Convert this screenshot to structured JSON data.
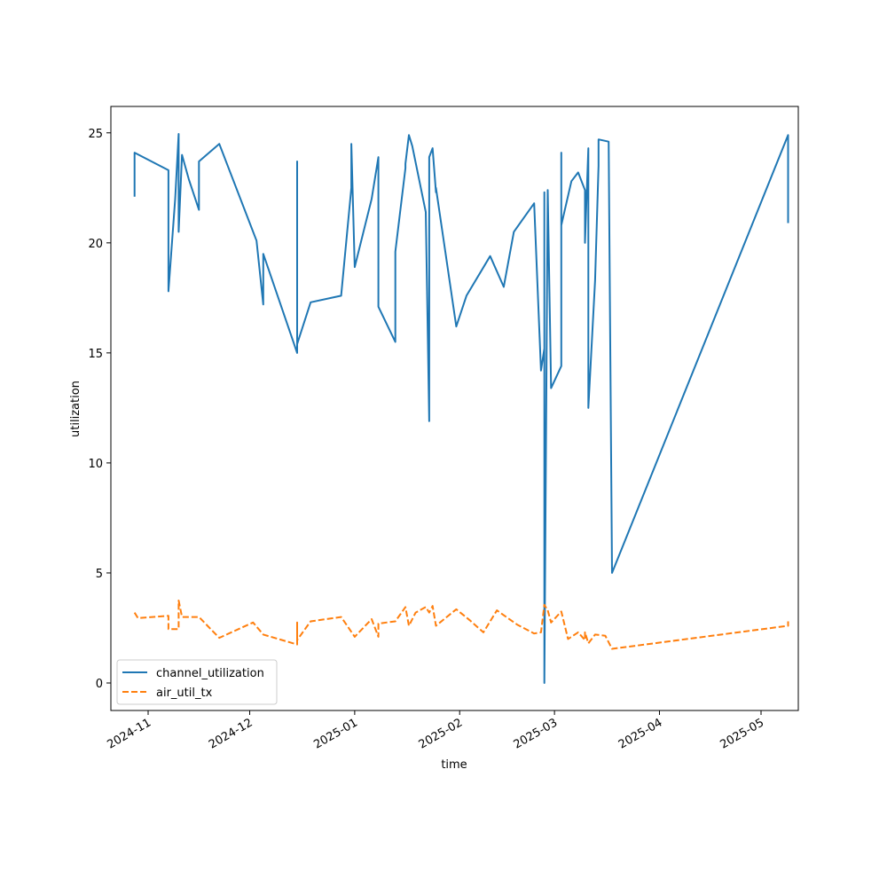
{
  "chart_data": {
    "type": "line",
    "title": "",
    "xlabel": "time",
    "ylabel": "utilization",
    "xlim": [
      "2024-10-21",
      "2025-05-12"
    ],
    "ylim": [
      -1.25,
      26.2
    ],
    "grid": false,
    "legend_position": "lower-left",
    "x_ticks": [
      {
        "date": "2024-11-01",
        "label": "2024-11"
      },
      {
        "date": "2024-12-01",
        "label": "2024-12"
      },
      {
        "date": "2025-01-01",
        "label": "2025-01"
      },
      {
        "date": "2025-02-01",
        "label": "2025-02"
      },
      {
        "date": "2025-03-01",
        "label": "2025-03"
      },
      {
        "date": "2025-04-01",
        "label": "2025-04"
      },
      {
        "date": "2025-05-01",
        "label": "2025-05"
      }
    ],
    "y_ticks": [
      0,
      5,
      10,
      15,
      20,
      25
    ],
    "series": [
      {
        "name": "channel_utilization",
        "color": "#1f77b4",
        "style": "solid",
        "points": [
          [
            "2024-10-28",
            22.1
          ],
          [
            "2024-10-28",
            24.1
          ],
          [
            "2024-11-07",
            23.3
          ],
          [
            "2024-11-07",
            17.8
          ],
          [
            "2024-11-09",
            22.0
          ],
          [
            "2024-11-10",
            24.95
          ],
          [
            "2024-11-10",
            20.5
          ],
          [
            "2024-11-11",
            24.0
          ],
          [
            "2024-11-13",
            22.9
          ],
          [
            "2024-11-16",
            21.5
          ],
          [
            "2024-11-16",
            23.7
          ],
          [
            "2024-11-22",
            24.5
          ],
          [
            "2024-12-03",
            20.1
          ],
          [
            "2024-12-05",
            17.2
          ],
          [
            "2024-12-05",
            19.5
          ],
          [
            "2024-12-15",
            15.0
          ],
          [
            "2024-12-15",
            23.7
          ],
          [
            "2024-12-15",
            15.4
          ],
          [
            "2024-12-19",
            17.3
          ],
          [
            "2024-12-28",
            17.6
          ],
          [
            "2024-12-31",
            22.5
          ],
          [
            "2024-12-31",
            24.5
          ],
          [
            "2025-01-01",
            18.9
          ],
          [
            "2025-01-06",
            22.0
          ],
          [
            "2025-01-08",
            23.9
          ],
          [
            "2025-01-08",
            17.1
          ],
          [
            "2025-01-13",
            15.5
          ],
          [
            "2025-01-13",
            19.6
          ],
          [
            "2025-01-16",
            23.4
          ],
          [
            "2025-01-16",
            23.6
          ],
          [
            "2025-01-17",
            24.9
          ],
          [
            "2025-01-18",
            24.4
          ],
          [
            "2025-01-22",
            21.4
          ],
          [
            "2025-01-23",
            11.9
          ],
          [
            "2025-01-23",
            23.9
          ],
          [
            "2025-01-24",
            24.3
          ],
          [
            "2025-01-25",
            22.3
          ],
          [
            "2025-01-25",
            22.5
          ],
          [
            "2025-01-31",
            16.2
          ],
          [
            "2025-02-03",
            17.6
          ],
          [
            "2025-02-10",
            19.4
          ],
          [
            "2025-02-14",
            18.0
          ],
          [
            "2025-02-17",
            20.5
          ],
          [
            "2025-02-23",
            21.8
          ],
          [
            "2025-02-25",
            14.2
          ],
          [
            "2025-02-26",
            15.2
          ],
          [
            "2025-02-26",
            22.3
          ],
          [
            "2025-02-26",
            0.0
          ],
          [
            "2025-02-27",
            22.4
          ],
          [
            "2025-02-28",
            13.4
          ],
          [
            "2025-03-03",
            14.4
          ],
          [
            "2025-03-03",
            24.1
          ],
          [
            "2025-03-03",
            20.8
          ],
          [
            "2025-03-06",
            22.8
          ],
          [
            "2025-03-08",
            23.2
          ],
          [
            "2025-03-10",
            22.4
          ],
          [
            "2025-03-10",
            20.0
          ],
          [
            "2025-03-11",
            24.3
          ],
          [
            "2025-03-11",
            12.5
          ],
          [
            "2025-03-13",
            18.3
          ],
          [
            "2025-03-14",
            23.5
          ],
          [
            "2025-03-14",
            24.7
          ],
          [
            "2025-03-17",
            24.6
          ],
          [
            "2025-03-18",
            5.0
          ],
          [
            "2025-05-09",
            24.9
          ],
          [
            "2025-05-09",
            20.9
          ]
        ]
      },
      {
        "name": "air_util_tx",
        "color": "#ff7f0e",
        "style": "dashed",
        "points": [
          [
            "2024-10-28",
            3.2
          ],
          [
            "2024-10-29",
            2.95
          ],
          [
            "2024-11-07",
            3.05
          ],
          [
            "2024-11-07",
            2.45
          ],
          [
            "2024-11-10",
            2.45
          ],
          [
            "2024-11-10",
            3.75
          ],
          [
            "2024-11-11",
            3.0
          ],
          [
            "2024-11-16",
            3.0
          ],
          [
            "2024-11-22",
            2.05
          ],
          [
            "2024-12-02",
            2.75
          ],
          [
            "2024-12-05",
            2.2
          ],
          [
            "2024-12-15",
            1.75
          ],
          [
            "2024-12-15",
            2.75
          ],
          [
            "2024-12-15",
            1.95
          ],
          [
            "2024-12-19",
            2.8
          ],
          [
            "2024-12-28",
            3.0
          ],
          [
            "2025-01-01",
            2.1
          ],
          [
            "2025-01-06",
            2.9
          ],
          [
            "2025-01-08",
            2.1
          ],
          [
            "2025-01-08",
            2.7
          ],
          [
            "2025-01-13",
            2.8
          ],
          [
            "2025-01-16",
            3.45
          ],
          [
            "2025-01-17",
            2.6
          ],
          [
            "2025-01-19",
            3.2
          ],
          [
            "2025-01-22",
            3.45
          ],
          [
            "2025-01-23",
            3.2
          ],
          [
            "2025-01-24",
            3.5
          ],
          [
            "2025-01-25",
            2.6
          ],
          [
            "2025-01-31",
            3.35
          ],
          [
            "2025-02-04",
            2.85
          ],
          [
            "2025-02-08",
            2.3
          ],
          [
            "2025-02-12",
            3.3
          ],
          [
            "2025-02-18",
            2.65
          ],
          [
            "2025-02-23",
            2.25
          ],
          [
            "2025-02-25",
            2.3
          ],
          [
            "2025-02-26",
            3.55
          ],
          [
            "2025-02-27",
            3.3
          ],
          [
            "2025-02-28",
            2.75
          ],
          [
            "2025-03-03",
            3.25
          ],
          [
            "2025-03-05",
            2.0
          ],
          [
            "2025-03-08",
            2.3
          ],
          [
            "2025-03-10",
            1.95
          ],
          [
            "2025-03-10",
            2.3
          ],
          [
            "2025-03-11",
            1.8
          ],
          [
            "2025-03-13",
            2.2
          ],
          [
            "2025-03-16",
            2.15
          ],
          [
            "2025-03-18",
            1.55
          ],
          [
            "2025-05-09",
            2.6
          ],
          [
            "2025-05-09",
            2.8
          ]
        ]
      }
    ]
  }
}
